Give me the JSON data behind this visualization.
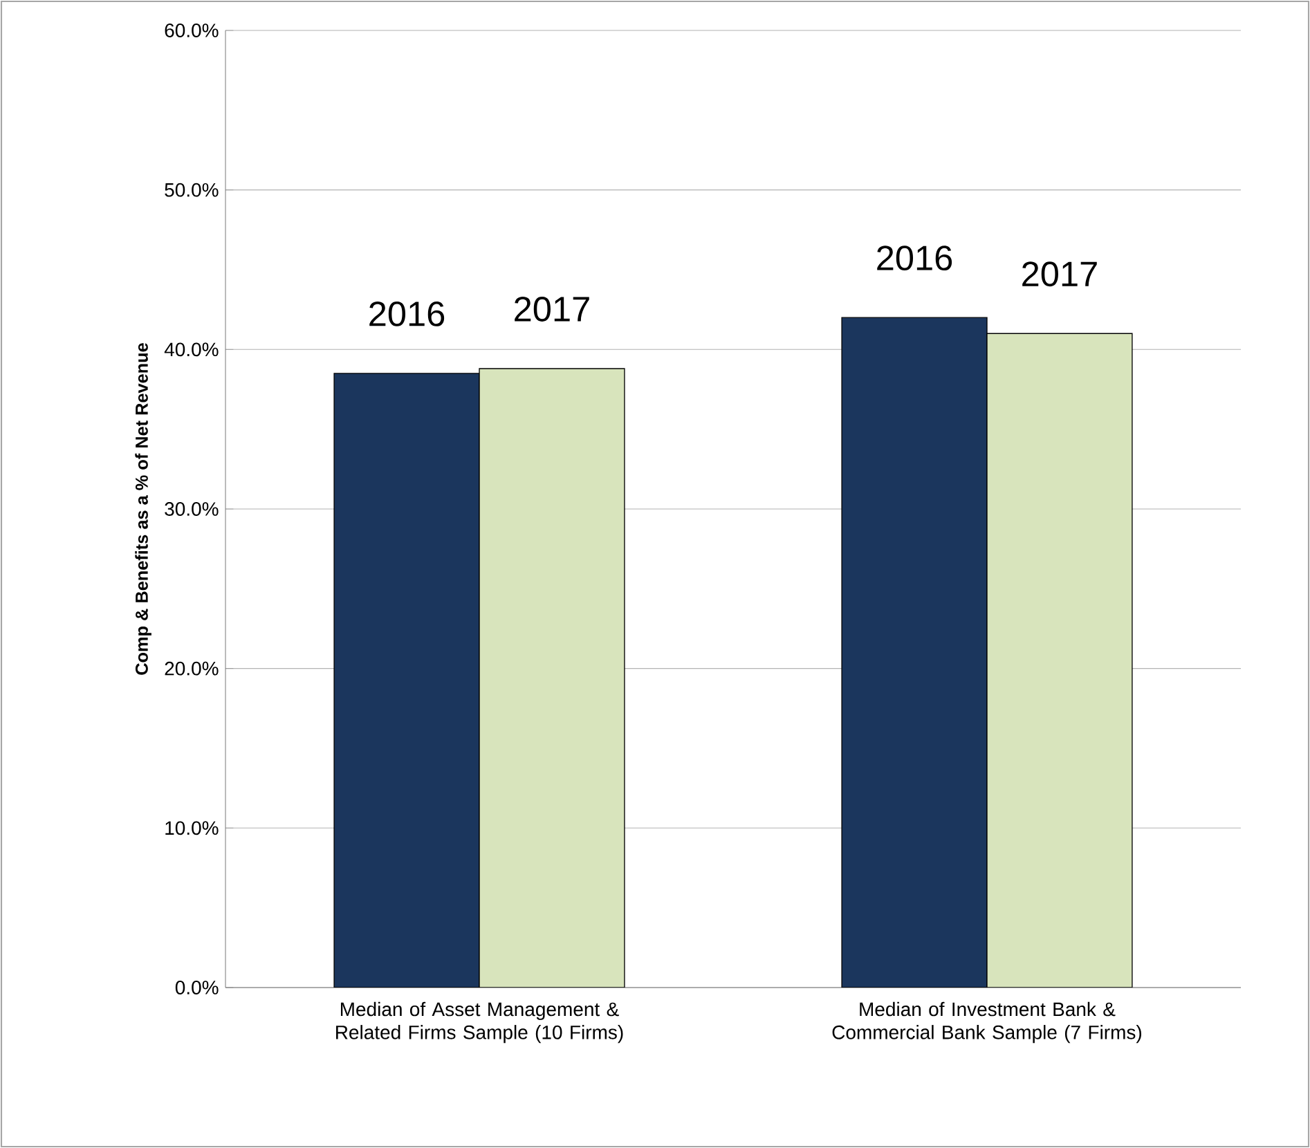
{
  "chart_data": {
    "type": "bar",
    "ylabel": "Comp & Benefits as a % of Net Revenue",
    "categories": [
      "Median of Asset Management & Related Firms Sample (10 Firms)",
      "Median of Investment Bank & Commercial Bank Sample (7 Firms)"
    ],
    "series": [
      {
        "name": "2016",
        "color": "#1b365d",
        "values": [
          38.5,
          42.0
        ]
      },
      {
        "name": "2017",
        "color": "#d8e4bc",
        "values": [
          38.8,
          41.0
        ]
      }
    ],
    "ylim": [
      0,
      60
    ],
    "yticks": [
      {
        "value": 0,
        "label": "0.0%"
      },
      {
        "value": 10,
        "label": "10.0%"
      },
      {
        "value": 20,
        "label": "20.0%"
      },
      {
        "value": 30,
        "label": "30.0%"
      },
      {
        "value": 40,
        "label": "40.0%"
      },
      {
        "value": 50,
        "label": "50.0%"
      },
      {
        "value": 60,
        "label": "60.0%"
      }
    ],
    "grid": "y"
  }
}
